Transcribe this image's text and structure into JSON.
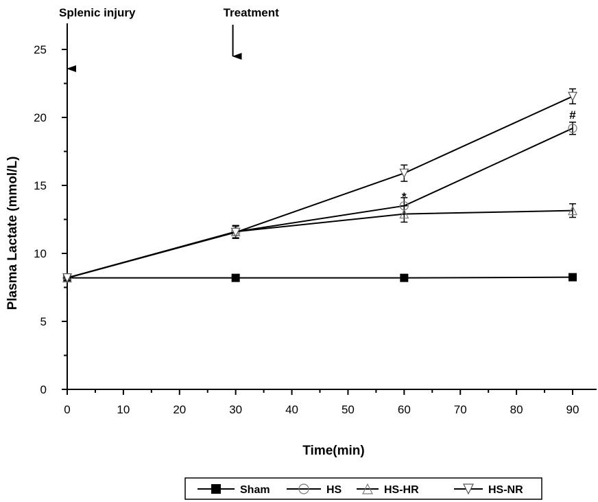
{
  "chart_data": {
    "type": "line",
    "xlabel": "Time(min)",
    "ylabel": "Plasma Lactate (mmol/L)",
    "xlim": [
      0,
      90
    ],
    "ylim": [
      0,
      27
    ],
    "xticks": [
      0,
      10,
      20,
      30,
      40,
      50,
      60,
      70,
      80,
      90
    ],
    "yticks": [
      0,
      5,
      10,
      15,
      20,
      25
    ],
    "grid": false,
    "legend_position": "bottom",
    "series": [
      {
        "name": "Sham",
        "marker": "square",
        "x": [
          0,
          30,
          60,
          90
        ],
        "y": [
          8.2,
          8.2,
          8.2,
          8.25
        ],
        "err": [
          0.25,
          0.25,
          0.25,
          0.25
        ]
      },
      {
        "name": "HS",
        "marker": "circle",
        "x": [
          0,
          30,
          60,
          90
        ],
        "y": [
          8.2,
          11.6,
          13.5,
          19.2
        ],
        "err": [
          0.2,
          0.45,
          0.6,
          0.45
        ]
      },
      {
        "name": "HS-HR",
        "marker": "triangle-up",
        "x": [
          0,
          30,
          60,
          90
        ],
        "y": [
          8.2,
          11.6,
          12.9,
          13.15
        ],
        "err": [
          0.2,
          0.45,
          0.6,
          0.5
        ]
      },
      {
        "name": "HS-NR",
        "marker": "triangle-down",
        "x": [
          0,
          30,
          60,
          90
        ],
        "y": [
          8.2,
          11.55,
          15.9,
          21.55
        ],
        "err": [
          0.2,
          0.45,
          0.6,
          0.55
        ]
      }
    ],
    "annotations": [
      {
        "text": "Splenic injury",
        "x": 0
      },
      {
        "text": "Treatment",
        "x": 29.5
      }
    ],
    "markers": [
      {
        "text": "*",
        "x": 60,
        "y": 14.8
      },
      {
        "text": "#",
        "x": 90,
        "y": 20.3
      }
    ]
  }
}
